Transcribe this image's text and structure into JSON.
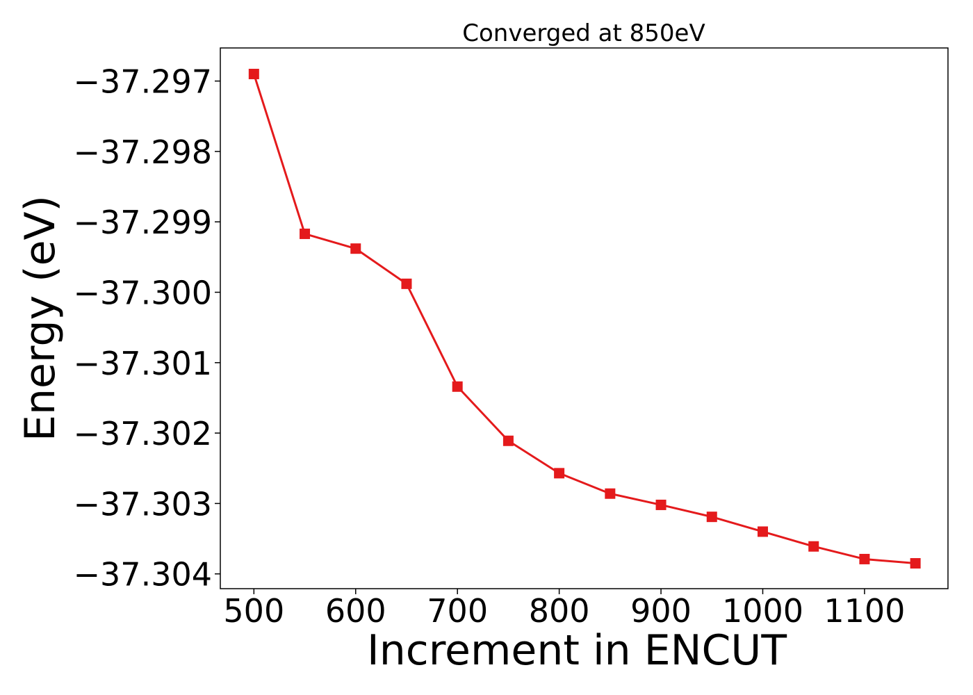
{
  "chart_data": {
    "type": "line",
    "title": "Converged at 850eV",
    "xlabel": "Increment in ENCUT",
    "ylabel": "Energy (eV)",
    "xlim": [
      467,
      1182
    ],
    "ylim": [
      -37.30421,
      -37.29653
    ],
    "x_ticks": [
      500,
      600,
      700,
      800,
      900,
      1000,
      1100
    ],
    "x_tick_labels": [
      "500",
      "600",
      "700",
      "800",
      "900",
      "1000",
      "1100"
    ],
    "y_ticks": [
      -37.297,
      -37.298,
      -37.299,
      -37.3,
      -37.301,
      -37.302,
      -37.303,
      -37.304
    ],
    "y_tick_labels": [
      "−37.297",
      "−37.298",
      "−37.299",
      "−37.300",
      "−37.301",
      "−37.302",
      "−37.303",
      "−37.304"
    ],
    "grid": false,
    "series": [
      {
        "color": "#e41a1c",
        "marker": "square",
        "x": [
          500,
          550,
          600,
          650,
          700,
          750,
          800,
          850,
          900,
          950,
          1000,
          1050,
          1100,
          1150
        ],
        "y": [
          -37.2969,
          -37.29917,
          -37.29938,
          -37.29988,
          -37.30134,
          -37.30211,
          -37.30257,
          -37.30286,
          -37.30302,
          -37.30319,
          -37.3034,
          -37.30361,
          -37.30379,
          -37.30385
        ]
      }
    ]
  }
}
